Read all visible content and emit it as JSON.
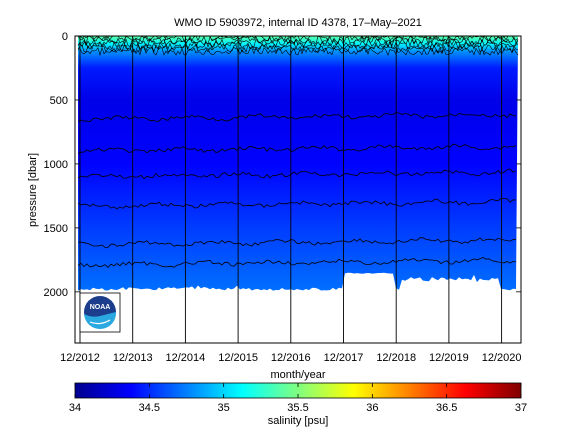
{
  "chart_data": {
    "type": "heatmap",
    "title": "WMO ID 5903972, internal ID 4378, 17–May–2021",
    "xlabel": "month/year",
    "ylabel": "pressure [dbar]",
    "x_tick_labels": [
      "12/2012",
      "12/2013",
      "12/2014",
      "12/2015",
      "12/2016",
      "12/2017",
      "12/2018",
      "12/2019",
      "12/2020"
    ],
    "xlim": [
      "2012-12",
      "2021-05"
    ],
    "ylim": [
      2400,
      0
    ],
    "y_ticks": [
      0,
      500,
      1000,
      1500,
      2000
    ],
    "y_reversed": true,
    "grid": "vertical lines at yearly ticks",
    "contour_levels_dbar": [
      650,
      900,
      1100,
      1330,
      1630,
      1790
    ],
    "max_pressure_dbar": 1990,
    "colorbar": {
      "label": "salinity [psu]",
      "range": [
        34,
        37
      ],
      "ticks": [
        34,
        34.5,
        35,
        35.5,
        36,
        36.5,
        37
      ],
      "tick_labels": [
        "34",
        "34.5",
        "35",
        "35.5",
        "36",
        "36.5",
        "37"
      ]
    },
    "colormap": [
      "#00008f",
      "#0000ff",
      "#0080ff",
      "#00ffff",
      "#80ff80",
      "#ffff00",
      "#ff8000",
      "#ff0000",
      "#800000"
    ],
    "salinity_profile": [
      {
        "p": 0,
        "s": 35.4
      },
      {
        "p": 60,
        "s": 35.1
      },
      {
        "p": 120,
        "s": 34.8
      },
      {
        "p": 250,
        "s": 34.45
      },
      {
        "p": 500,
        "s": 34.3
      },
      {
        "p": 1000,
        "s": 34.38
      },
      {
        "p": 1500,
        "s": 34.55
      },
      {
        "p": 2000,
        "s": 34.7
      }
    ]
  },
  "logo": {
    "text": "NOAA",
    "colors": [
      "#1c3c8c",
      "#2aa8e0"
    ]
  }
}
